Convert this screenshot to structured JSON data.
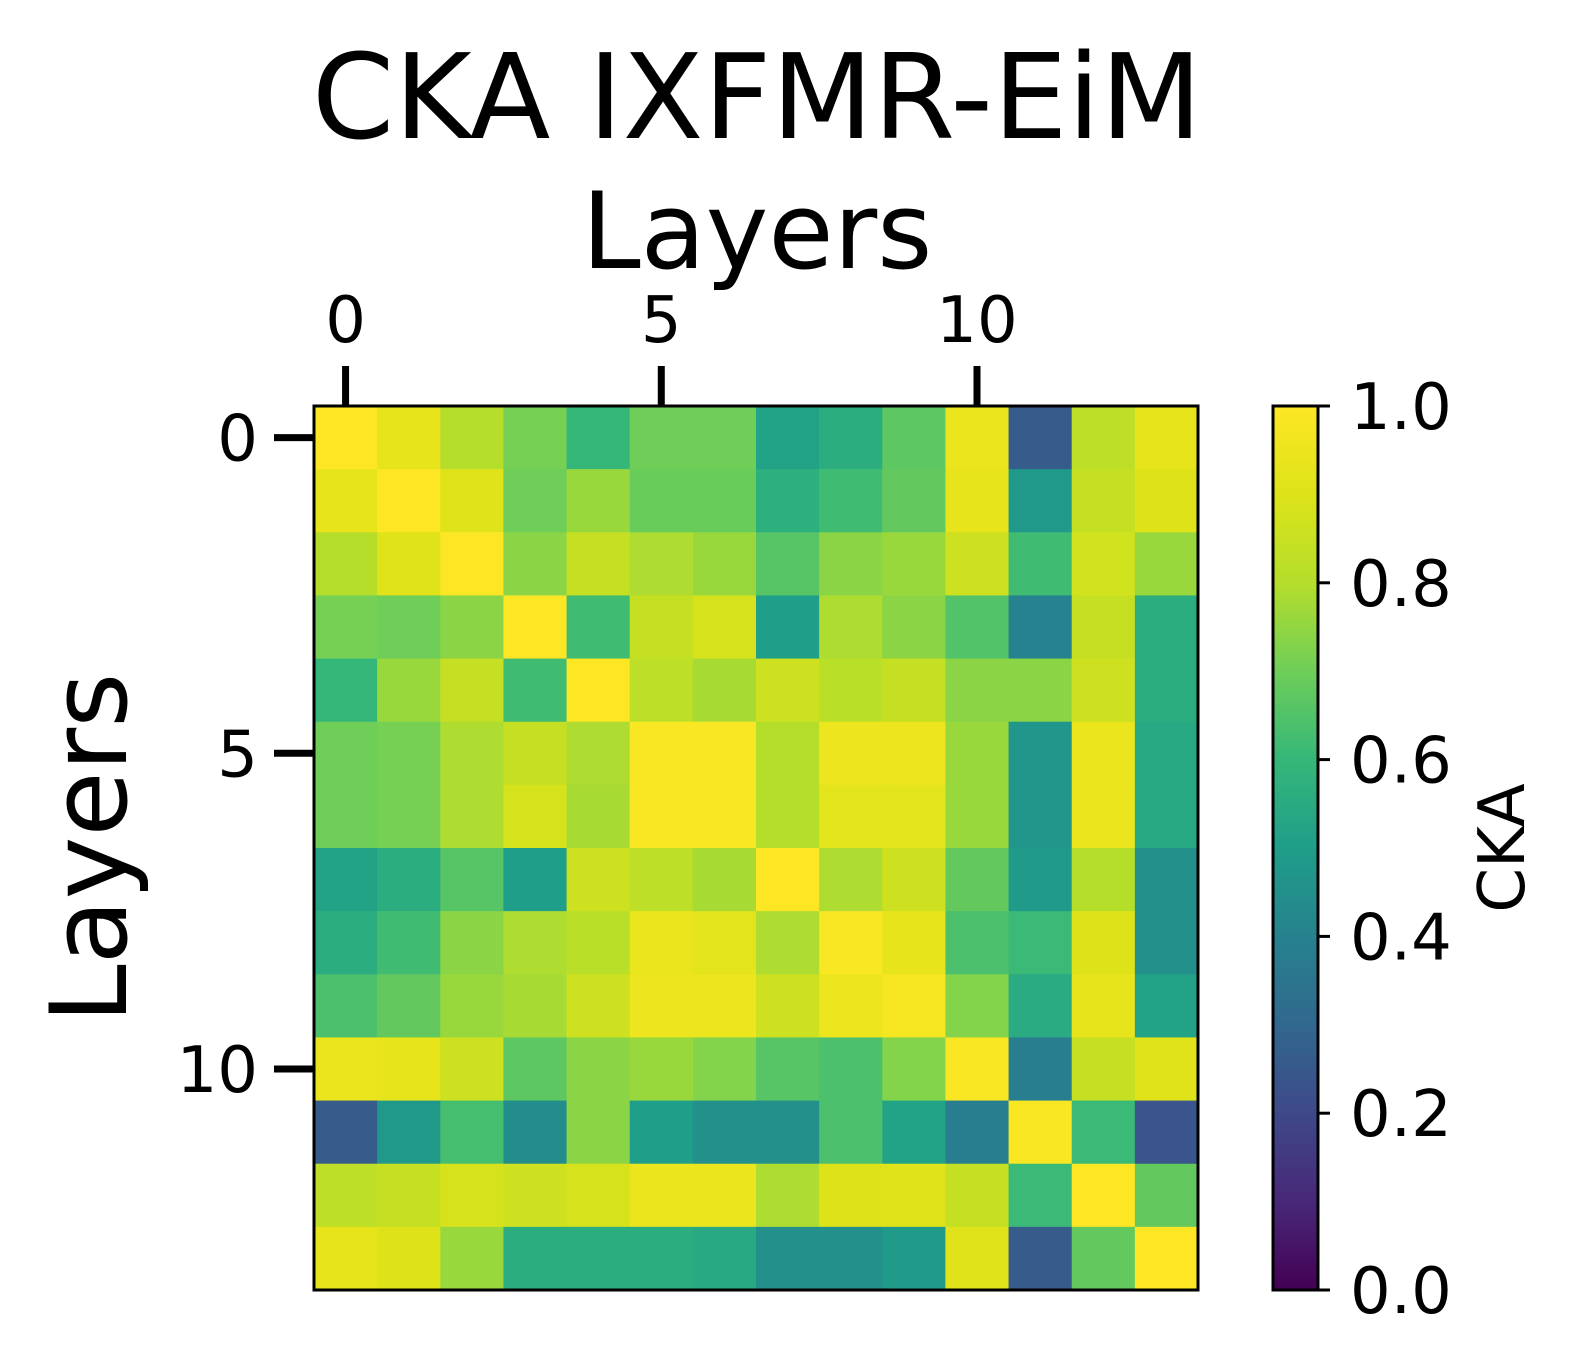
{
  "chart_data": {
    "type": "heatmap",
    "title": "CKA IXFMR-EiM",
    "xlabel": "Layers",
    "ylabel": "Layers",
    "x_ticks": [
      "0",
      "5",
      "10"
    ],
    "x_tick_positions": [
      0,
      5,
      10
    ],
    "y_ticks": [
      "0",
      "5",
      "10"
    ],
    "y_tick_positions": [
      0,
      5,
      10
    ],
    "xaxis_position": "top",
    "colormap": "viridis",
    "colorbar": {
      "label": "CKA",
      "range": [
        0.0,
        1.0
      ],
      "ticks": [
        "0.0",
        "0.2",
        "0.4",
        "0.6",
        "0.8",
        "1.0"
      ],
      "tick_values": [
        0.0,
        0.2,
        0.4,
        0.6,
        0.8,
        1.0
      ],
      "position": "right"
    },
    "grid": false,
    "matrix": [
      [
        1.0,
        0.93,
        0.8,
        0.71,
        0.6,
        0.7,
        0.7,
        0.52,
        0.56,
        0.67,
        0.94,
        0.26,
        0.82,
        0.93
      ],
      [
        0.93,
        1.0,
        0.91,
        0.7,
        0.76,
        0.69,
        0.69,
        0.57,
        0.62,
        0.68,
        0.93,
        0.48,
        0.84,
        0.9
      ],
      [
        0.8,
        0.91,
        1.0,
        0.74,
        0.84,
        0.79,
        0.76,
        0.66,
        0.74,
        0.76,
        0.86,
        0.62,
        0.87,
        0.76
      ],
      [
        0.71,
        0.7,
        0.74,
        1.0,
        0.62,
        0.84,
        0.88,
        0.5,
        0.79,
        0.74,
        0.65,
        0.4,
        0.84,
        0.56
      ],
      [
        0.6,
        0.76,
        0.84,
        0.62,
        1.0,
        0.82,
        0.78,
        0.86,
        0.81,
        0.84,
        0.74,
        0.74,
        0.86,
        0.56
      ],
      [
        0.7,
        0.71,
        0.79,
        0.84,
        0.79,
        0.99,
        0.99,
        0.8,
        0.95,
        0.95,
        0.76,
        0.47,
        0.94,
        0.54
      ],
      [
        0.7,
        0.71,
        0.79,
        0.88,
        0.78,
        0.99,
        0.99,
        0.8,
        0.92,
        0.92,
        0.76,
        0.47,
        0.94,
        0.54
      ],
      [
        0.52,
        0.56,
        0.66,
        0.5,
        0.86,
        0.82,
        0.78,
        1.0,
        0.79,
        0.86,
        0.68,
        0.49,
        0.8,
        0.45
      ],
      [
        0.56,
        0.62,
        0.74,
        0.79,
        0.81,
        0.94,
        0.92,
        0.79,
        0.99,
        0.93,
        0.64,
        0.61,
        0.9,
        0.45
      ],
      [
        0.64,
        0.68,
        0.76,
        0.78,
        0.86,
        0.95,
        0.95,
        0.86,
        0.95,
        0.98,
        0.73,
        0.55,
        0.93,
        0.52
      ],
      [
        0.94,
        0.93,
        0.86,
        0.67,
        0.74,
        0.76,
        0.73,
        0.66,
        0.64,
        0.73,
        0.99,
        0.38,
        0.84,
        0.91
      ],
      [
        0.26,
        0.48,
        0.63,
        0.44,
        0.74,
        0.5,
        0.45,
        0.45,
        0.64,
        0.52,
        0.38,
        0.99,
        0.61,
        0.24
      ],
      [
        0.82,
        0.84,
        0.88,
        0.86,
        0.88,
        0.94,
        0.94,
        0.79,
        0.9,
        0.91,
        0.84,
        0.61,
        1.0,
        0.68
      ],
      [
        0.93,
        0.9,
        0.76,
        0.56,
        0.56,
        0.56,
        0.54,
        0.45,
        0.45,
        0.49,
        0.91,
        0.26,
        0.68,
        1.0
      ]
    ]
  }
}
